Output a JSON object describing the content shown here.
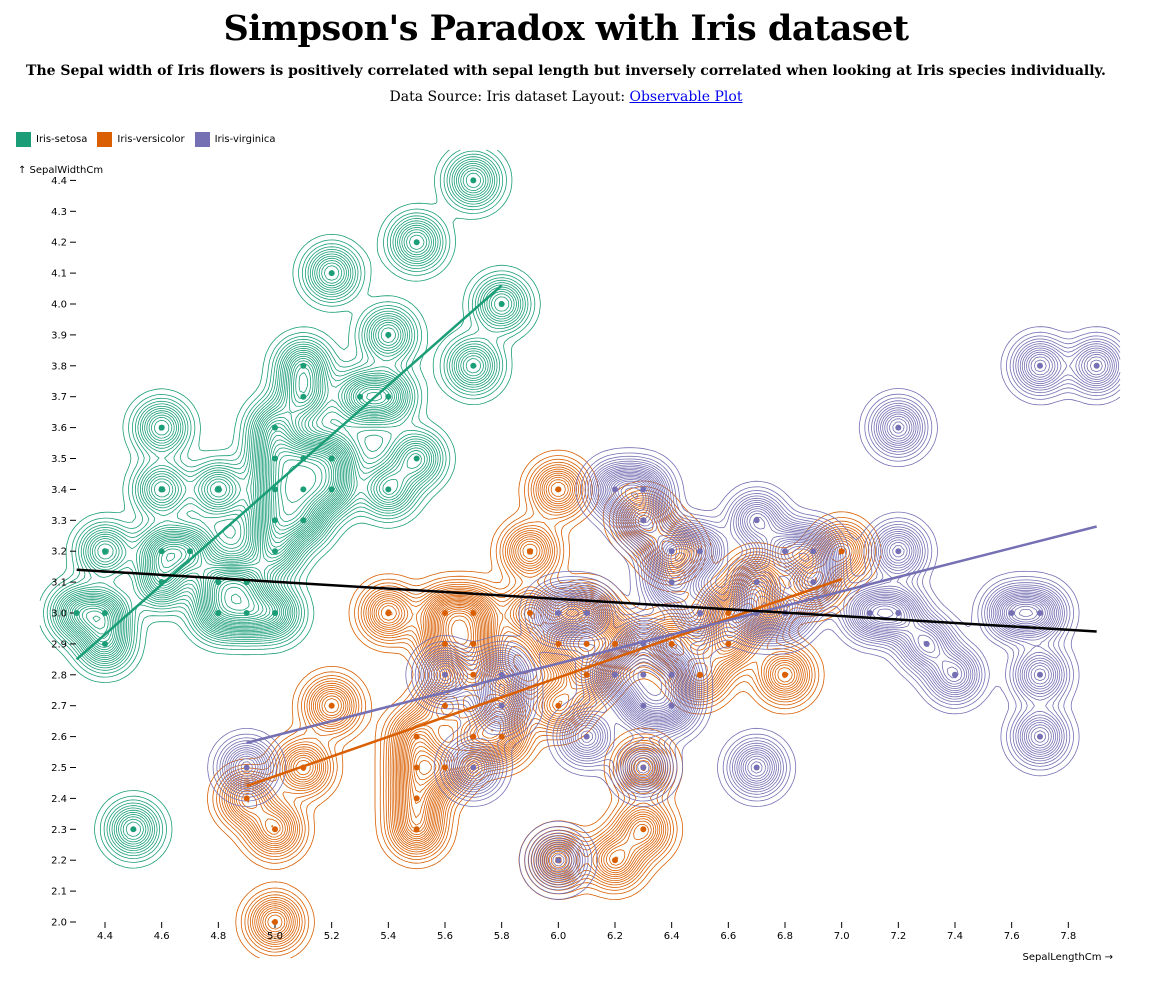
{
  "title": "Simpson's Paradox with Iris dataset",
  "subtitle": "The Sepal width of Iris flowers is positively correlated with sepal length but inversely correlated when looking at Iris species individually.",
  "source": {
    "prefix": "Data Source: Iris dataset Layout: ",
    "link_text": "Observable Plot"
  },
  "chart_data": {
    "type": "scatter",
    "xlabel": "SepalLengthCm →",
    "ylabel": "↑ SepalWidthCm",
    "xlim": [
      4.3,
      7.9
    ],
    "ylim": [
      2.0,
      4.4
    ],
    "x_ticks": [
      4.4,
      4.6,
      4.8,
      5.0,
      5.2,
      5.4,
      5.6,
      5.8,
      6.0,
      6.2,
      6.4,
      6.6,
      6.8,
      7.0,
      7.2,
      7.4,
      7.6,
      7.8
    ],
    "y_ticks": [
      2.0,
      2.1,
      2.2,
      2.3,
      2.4,
      2.5,
      2.6,
      2.7,
      2.8,
      2.9,
      3.0,
      3.1,
      3.2,
      3.3,
      3.4,
      3.5,
      3.6,
      3.7,
      3.8,
      3.9,
      4.0,
      4.1,
      4.2,
      4.3,
      4.4
    ],
    "grid": false,
    "legend_position": "top-left",
    "series": [
      {
        "name": "Iris-setosa",
        "color": "#1b9e77",
        "points": [
          [
            4.3,
            3.0
          ],
          [
            4.4,
            3.0
          ],
          [
            4.4,
            2.9
          ],
          [
            4.4,
            3.2
          ],
          [
            4.5,
            2.3
          ],
          [
            4.6,
            3.1
          ],
          [
            4.6,
            3.2
          ],
          [
            4.6,
            3.4
          ],
          [
            4.6,
            3.6
          ],
          [
            4.7,
            3.2
          ],
          [
            4.8,
            3.0
          ],
          [
            4.8,
            3.1
          ],
          [
            4.8,
            3.4
          ],
          [
            4.9,
            3.0
          ],
          [
            4.9,
            3.1
          ],
          [
            5.0,
            3.0
          ],
          [
            5.0,
            3.2
          ],
          [
            5.0,
            3.3
          ],
          [
            5.0,
            3.4
          ],
          [
            5.0,
            3.5
          ],
          [
            5.0,
            3.6
          ],
          [
            5.1,
            3.3
          ],
          [
            5.1,
            3.4
          ],
          [
            5.1,
            3.5
          ],
          [
            5.1,
            3.7
          ],
          [
            5.1,
            3.8
          ],
          [
            5.2,
            3.4
          ],
          [
            5.2,
            3.5
          ],
          [
            5.2,
            4.1
          ],
          [
            5.3,
            3.7
          ],
          [
            5.4,
            3.4
          ],
          [
            5.4,
            3.7
          ],
          [
            5.4,
            3.9
          ],
          [
            5.5,
            3.5
          ],
          [
            5.5,
            4.2
          ],
          [
            5.7,
            3.8
          ],
          [
            5.7,
            4.4
          ],
          [
            5.8,
            4.0
          ]
        ],
        "regression": [
          [
            4.3,
            2.85
          ],
          [
            5.8,
            4.06
          ]
        ]
      },
      {
        "name": "Iris-versicolor",
        "color": "#d95f02",
        "points": [
          [
            4.9,
            2.4
          ],
          [
            5.0,
            2.0
          ],
          [
            5.0,
            2.3
          ],
          [
            5.1,
            2.5
          ],
          [
            5.2,
            2.7
          ],
          [
            5.4,
            3.0
          ],
          [
            5.5,
            2.3
          ],
          [
            5.5,
            2.4
          ],
          [
            5.5,
            2.5
          ],
          [
            5.5,
            2.6
          ],
          [
            5.6,
            2.5
          ],
          [
            5.6,
            2.7
          ],
          [
            5.6,
            2.9
          ],
          [
            5.6,
            3.0
          ],
          [
            5.7,
            2.6
          ],
          [
            5.7,
            2.8
          ],
          [
            5.7,
            2.9
          ],
          [
            5.7,
            3.0
          ],
          [
            5.8,
            2.6
          ],
          [
            5.8,
            2.7
          ],
          [
            5.9,
            3.0
          ],
          [
            5.9,
            3.2
          ],
          [
            6.0,
            2.2
          ],
          [
            6.0,
            2.7
          ],
          [
            6.0,
            2.9
          ],
          [
            6.0,
            3.4
          ],
          [
            6.1,
            2.8
          ],
          [
            6.1,
            2.9
          ],
          [
            6.1,
            3.0
          ],
          [
            6.2,
            2.2
          ],
          [
            6.2,
            2.9
          ],
          [
            6.3,
            2.3
          ],
          [
            6.3,
            2.5
          ],
          [
            6.3,
            3.3
          ],
          [
            6.4,
            2.9
          ],
          [
            6.4,
            3.2
          ],
          [
            6.5,
            2.8
          ],
          [
            6.6,
            2.9
          ],
          [
            6.6,
            3.0
          ],
          [
            6.7,
            3.0
          ],
          [
            6.7,
            3.1
          ],
          [
            6.8,
            2.8
          ],
          [
            6.9,
            3.1
          ],
          [
            7.0,
            3.2
          ]
        ],
        "regression": [
          [
            4.9,
            2.44
          ],
          [
            7.0,
            3.11
          ]
        ]
      },
      {
        "name": "Iris-virginica",
        "color": "#7570b3",
        "points": [
          [
            4.9,
            2.5
          ],
          [
            5.6,
            2.8
          ],
          [
            5.7,
            2.5
          ],
          [
            5.8,
            2.7
          ],
          [
            5.8,
            2.8
          ],
          [
            6.0,
            2.2
          ],
          [
            6.0,
            3.0
          ],
          [
            6.1,
            2.6
          ],
          [
            6.1,
            3.0
          ],
          [
            6.2,
            2.8
          ],
          [
            6.2,
            3.4
          ],
          [
            6.3,
            2.5
          ],
          [
            6.3,
            2.7
          ],
          [
            6.3,
            2.8
          ],
          [
            6.3,
            2.9
          ],
          [
            6.3,
            3.3
          ],
          [
            6.3,
            3.4
          ],
          [
            6.4,
            2.7
          ],
          [
            6.4,
            2.8
          ],
          [
            6.4,
            3.1
          ],
          [
            6.4,
            3.2
          ],
          [
            6.5,
            3.0
          ],
          [
            6.5,
            3.2
          ],
          [
            6.7,
            2.5
          ],
          [
            6.7,
            3.0
          ],
          [
            6.7,
            3.1
          ],
          [
            6.7,
            3.3
          ],
          [
            6.8,
            3.0
          ],
          [
            6.8,
            3.2
          ],
          [
            6.9,
            3.1
          ],
          [
            6.9,
            3.2
          ],
          [
            7.1,
            3.0
          ],
          [
            7.2,
            3.0
          ],
          [
            7.2,
            3.2
          ],
          [
            7.2,
            3.6
          ],
          [
            7.3,
            2.9
          ],
          [
            7.4,
            2.8
          ],
          [
            7.6,
            3.0
          ],
          [
            7.7,
            2.6
          ],
          [
            7.7,
            2.8
          ],
          [
            7.7,
            3.0
          ],
          [
            7.7,
            3.8
          ],
          [
            7.9,
            3.8
          ]
        ],
        "regression": [
          [
            4.9,
            2.58
          ],
          [
            7.9,
            3.28
          ]
        ]
      }
    ],
    "overall_regression": {
      "color": "#000000",
      "line": [
        [
          4.3,
          3.14
        ],
        [
          7.9,
          2.94
        ]
      ]
    }
  }
}
